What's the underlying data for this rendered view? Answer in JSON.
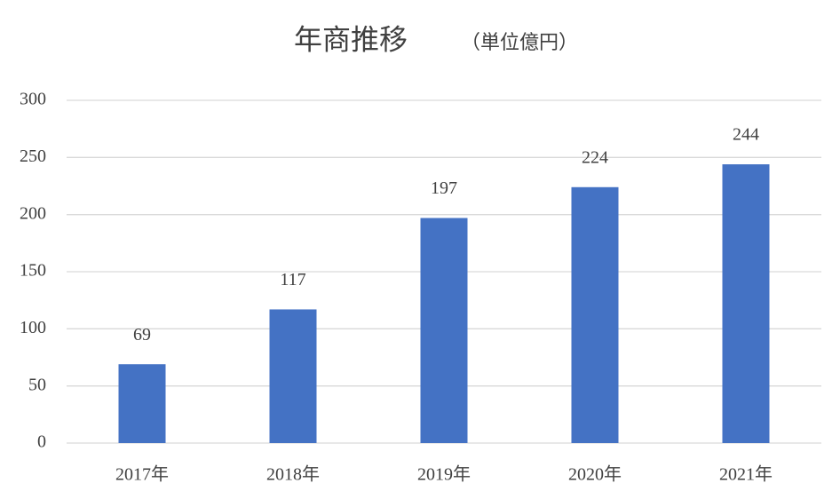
{
  "chart_data": {
    "type": "bar",
    "title": "年商推移",
    "subtitle": "（単位億円）",
    "categories": [
      "2017年",
      "2018年",
      "2019年",
      "2020年",
      "2021年"
    ],
    "values": [
      69,
      117,
      197,
      224,
      244
    ],
    "color": "#4472c4",
    "ylim": [
      0,
      300
    ],
    "yticks": [
      0,
      50,
      100,
      150,
      200,
      250,
      300
    ],
    "grid": true
  }
}
